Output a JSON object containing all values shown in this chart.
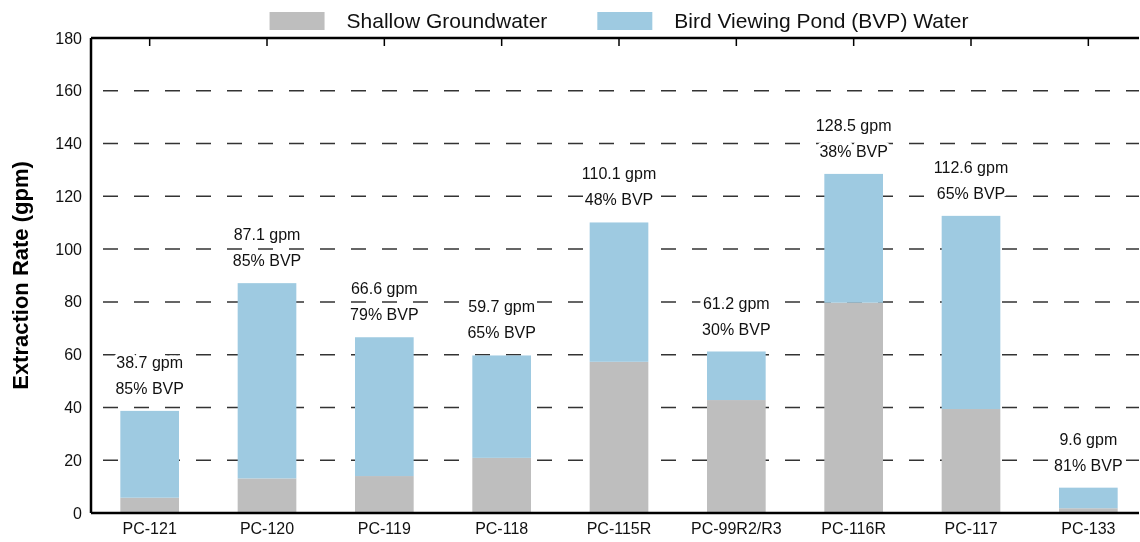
{
  "chart_data": {
    "type": "bar",
    "stacked": true,
    "ylabel": "Extraction Rate (gpm)",
    "categories": [
      "PC-121",
      "PC-120",
      "PC-119",
      "PC-118",
      "PC-115R",
      "PC-99R2/R3",
      "PC-116R",
      "PC-117",
      "PC-133"
    ],
    "series": [
      {
        "name": "Shallow Groundwater",
        "color": "#bebebe",
        "values": [
          5.8,
          13.1,
          14.0,
          20.9,
          57.3,
          42.8,
          79.7,
          39.4,
          1.8
        ]
      },
      {
        "name": "Bird Viewing Pond (BVP) Water",
        "color": "#9ecae1",
        "values": [
          32.9,
          74.0,
          52.6,
          38.8,
          52.8,
          18.4,
          48.8,
          73.2,
          7.8
        ]
      }
    ],
    "ylim": [
      0,
      180
    ],
    "yticks": [
      0,
      20,
      40,
      60,
      80,
      100,
      120,
      140,
      160,
      180
    ],
    "grid": "y",
    "legend": "top",
    "totals": [
      "38.7 gpm\n85% BVP",
      "87.1 gpm\n85% BVP",
      "66.6 gpm\n79% BVP",
      "59.7 gpm\n65% BVP",
      "110.1 gpm\n48% BVP",
      "61.2 gpm\n30% BVP",
      "128.5 gpm\n38% BVP",
      "112.6 gpm\n65% BVP",
      "9.6 gpm\n81% BVP"
    ]
  }
}
